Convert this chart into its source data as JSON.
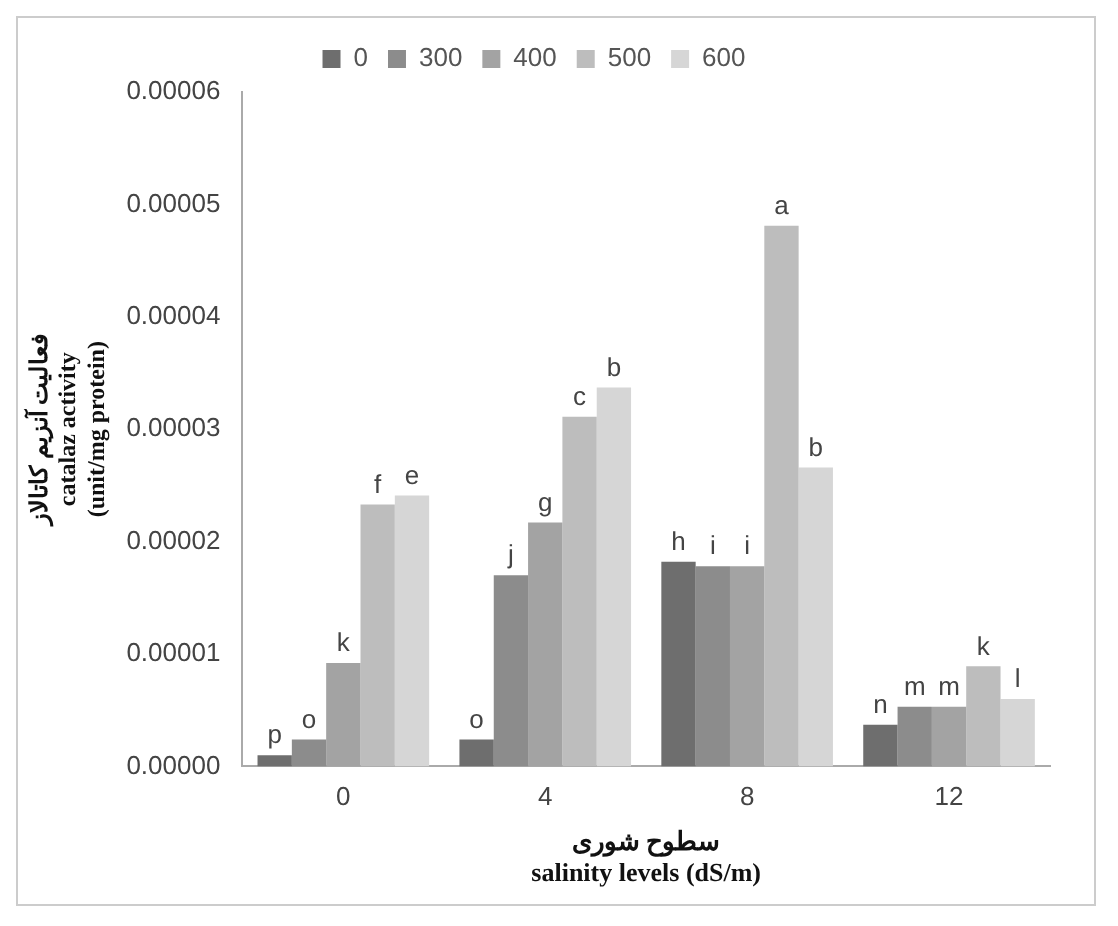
{
  "chart_data": {
    "type": "bar",
    "xlabel": "سطوح شوری\nsalinity levels (dS/m)",
    "ylabel": "فعالیت آنزیم کاتالاز\ncatalaz activity\n(unit/mg protein)",
    "categories": [
      "0",
      "4",
      "8",
      "12"
    ],
    "series": [
      {
        "name": "0",
        "color": "#6e6e6e",
        "values": [
          1e-06,
          2.4e-06,
          1.82e-05,
          3.7e-06
        ],
        "value_labels": [
          "p",
          "o",
          "h",
          "n"
        ]
      },
      {
        "name": "300",
        "color": "#8c8c8c",
        "values": [
          2.4e-06,
          1.7e-05,
          1.78e-05,
          5.3e-06
        ],
        "value_labels": [
          "o",
          "j",
          "i",
          "m"
        ]
      },
      {
        "name": "400",
        "color": "#a3a3a3",
        "values": [
          9.2e-06,
          2.17e-05,
          1.78e-05,
          5.3e-06
        ],
        "value_labels": [
          "k",
          "g",
          "i",
          "m"
        ]
      },
      {
        "name": "500",
        "color": "#bdbdbd",
        "values": [
          2.33e-05,
          3.11e-05,
          4.81e-05,
          8.9e-06
        ],
        "value_labels": [
          "f",
          "c",
          "a",
          "k"
        ]
      },
      {
        "name": "600",
        "color": "#d6d6d6",
        "values": [
          2.41e-05,
          3.37e-05,
          2.66e-05,
          6e-06
        ],
        "value_labels": [
          "e",
          "b",
          "b",
          "l"
        ]
      }
    ],
    "ylim": [
      0,
      6e-05
    ],
    "yticks": [
      {
        "value": 0,
        "label": "0.00000"
      },
      {
        "value": 1e-05,
        "label": "0.00001"
      },
      {
        "value": 2e-05,
        "label": "0.00002"
      },
      {
        "value": 3e-05,
        "label": "0.00003"
      },
      {
        "value": 4e-05,
        "label": "0.00004"
      },
      {
        "value": 5e-05,
        "label": "0.00005"
      },
      {
        "value": 6e-05,
        "label": "0.00006"
      }
    ],
    "grid": false,
    "legend": "top"
  }
}
